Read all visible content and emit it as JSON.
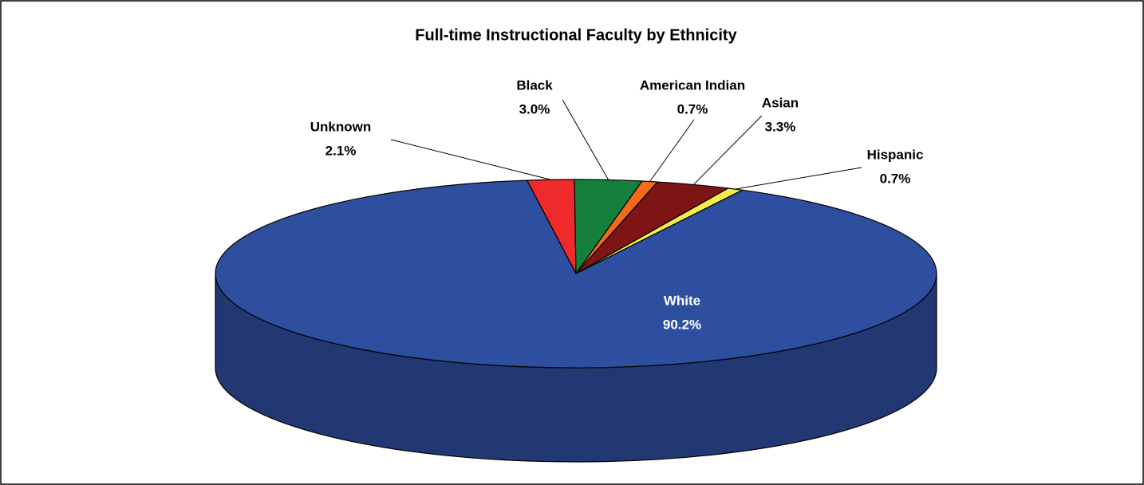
{
  "chart_data": {
    "type": "pie",
    "title": "Full-time Instructional Faculty by Ethnicity",
    "categories": [
      "Unknown",
      "Black",
      "American Indian",
      "Asian",
      "Hispanic",
      "White"
    ],
    "values": [
      2.1,
      3.0,
      0.7,
      3.3,
      0.7,
      90.2
    ],
    "value_labels": [
      "2.1%",
      "3.0%",
      "0.7%",
      "3.3%",
      "0.7%",
      "90.2%"
    ],
    "colors": [
      "#ee2a2a",
      "#14803c",
      "#f26b1d",
      "#7d1515",
      "#f5ec4a",
      "#2e4ea0"
    ]
  }
}
